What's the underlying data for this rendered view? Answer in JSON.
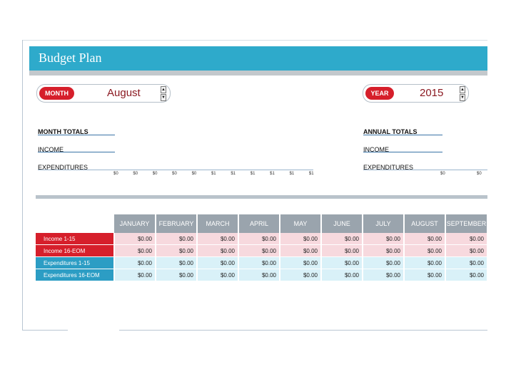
{
  "title": "Budget Plan",
  "month_selector": {
    "label": "MONTH",
    "value": "August"
  },
  "year_selector": {
    "label": "YEAR",
    "value": "2015"
  },
  "month_totals": {
    "heading": "MONTH TOTALS",
    "income_label": "INCOME",
    "expenditures_label": "EXPENDITURES",
    "axis_values": [
      "$0",
      "$0",
      "$0",
      "$0",
      "$0",
      "$1",
      "$1",
      "$1",
      "$1",
      "$1",
      "$1"
    ]
  },
  "annual_totals": {
    "heading": "ANNUAL TOTALS",
    "income_label": "INCOME",
    "expenditures_label": "EXPENDITURES",
    "axis_values": [
      "$0",
      "$0"
    ]
  },
  "table": {
    "months": [
      "JANUARY",
      "FEBRUARY",
      "MARCH",
      "APRIL",
      "MAY",
      "JUNE",
      "JULY",
      "AUGUST",
      "SEPTEMBER"
    ],
    "rows": [
      {
        "label": "Income 1-15",
        "kind": "income",
        "values": [
          "$0.00",
          "$0.00",
          "$0.00",
          "$0.00",
          "$0.00",
          "$0.00",
          "$0.00",
          "$0.00",
          "$0.00"
        ]
      },
      {
        "label": "Income 16-EOM",
        "kind": "income",
        "values": [
          "$0.00",
          "$0.00",
          "$0.00",
          "$0.00",
          "$0.00",
          "$0.00",
          "$0.00",
          "$0.00",
          "$0.00"
        ]
      },
      {
        "label": "Expenditures 1-15",
        "kind": "exp",
        "values": [
          "$0.00",
          "$0.00",
          "$0.00",
          "$0.00",
          "$0.00",
          "$0.00",
          "$0.00",
          "$0.00",
          "$0.00"
        ]
      },
      {
        "label": "Expenditures 16-EOM",
        "kind": "exp",
        "values": [
          "$0.00",
          "$0.00",
          "$0.00",
          "$0.00",
          "$0.00",
          "$0.00",
          "$0.00",
          "$0.00",
          "$0.00"
        ]
      }
    ]
  },
  "colors": {
    "header": "#2eaacb",
    "income": "#d61f2b",
    "expenditure": "#2c9dc4",
    "column_header": "#9aa4ad"
  },
  "icons": {
    "spinner_up": "▲",
    "spinner_down": "▼"
  }
}
